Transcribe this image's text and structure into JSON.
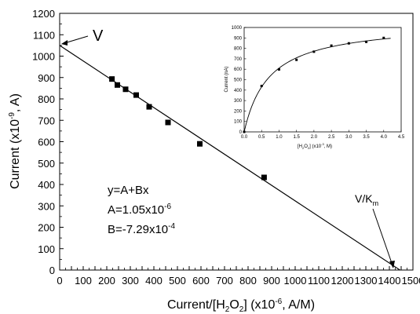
{
  "chart_data": [
    {
      "type": "scatter",
      "xlabel": {
        "main": "Current/[H",
        "sub1": "2",
        "mid": "O",
        "sub2": "2",
        "tail": "] (x10",
        "sup": "-6",
        "end": ", A/M)"
      },
      "ylabel": {
        "main": "Current (x10",
        "sup": "-9",
        "end": ", A)"
      },
      "xlim": [
        0,
        1500
      ],
      "ylim": [
        0,
        1200
      ],
      "xticks": [
        "0",
        "50",
        "100",
        "150",
        "200",
        "250",
        "300",
        "350",
        "400",
        "450",
        "500",
        "550",
        "600",
        "650",
        "700",
        "750",
        "800",
        "850",
        "900",
        "950",
        "1000",
        "1050",
        "1100",
        "1150",
        "1200",
        "1250",
        "1300",
        "1350",
        "1400",
        "1450",
        "1500"
      ],
      "yticks": [
        "0",
        "100",
        "200",
        "300",
        "400",
        "500",
        "600",
        "700",
        "800",
        "900",
        "1000",
        "1100",
        "1200"
      ],
      "points": {
        "x": [
          222,
          245,
          280,
          325,
          380,
          460,
          595,
          868
        ],
        "y": [
          893,
          865,
          845,
          818,
          763,
          690,
          590,
          433
        ]
      },
      "fit_line": {
        "x": [
          0,
          1445
        ],
        "y": [
          1050,
          0
        ]
      },
      "annotations": {
        "v": "V",
        "vkm_main": "V/K",
        "vkm_sub": "m",
        "eq1": "y=A+Bx",
        "eq2_main": "A=1.05x10",
        "eq2_sup": "-6",
        "eq3_main": "B=-7.29x10",
        "eq3_sup": "-4"
      }
    },
    {
      "type": "scatter",
      "xlabel": {
        "main": "[H",
        "sub1": "2",
        "mid": "O",
        "sub2": "2",
        "tail": "] (x10",
        "sup": "-3",
        "end": ", M)"
      },
      "ylabel": "Current (nA)",
      "xlim": [
        0,
        4.5
      ],
      "ylim": [
        0,
        1000
      ],
      "xticks": [
        "0.0",
        "0.5",
        "1.0",
        "1.5",
        "2.0",
        "2.5",
        "3.0",
        "3.5",
        "4.0",
        "4.5"
      ],
      "yticks": [
        "0",
        "100",
        "200",
        "300",
        "400",
        "500",
        "600",
        "700",
        "800",
        "900",
        "1000"
      ],
      "points": {
        "x": [
          0.0,
          0.5,
          1.0,
          1.5,
          2.0,
          2.5,
          3.0,
          3.5,
          4.0
        ],
        "y": [
          0,
          440,
          598,
          690,
          768,
          826,
          848,
          862,
          900
        ]
      },
      "fit_curve": {
        "vmax": 1050,
        "km": 0.72
      }
    }
  ]
}
